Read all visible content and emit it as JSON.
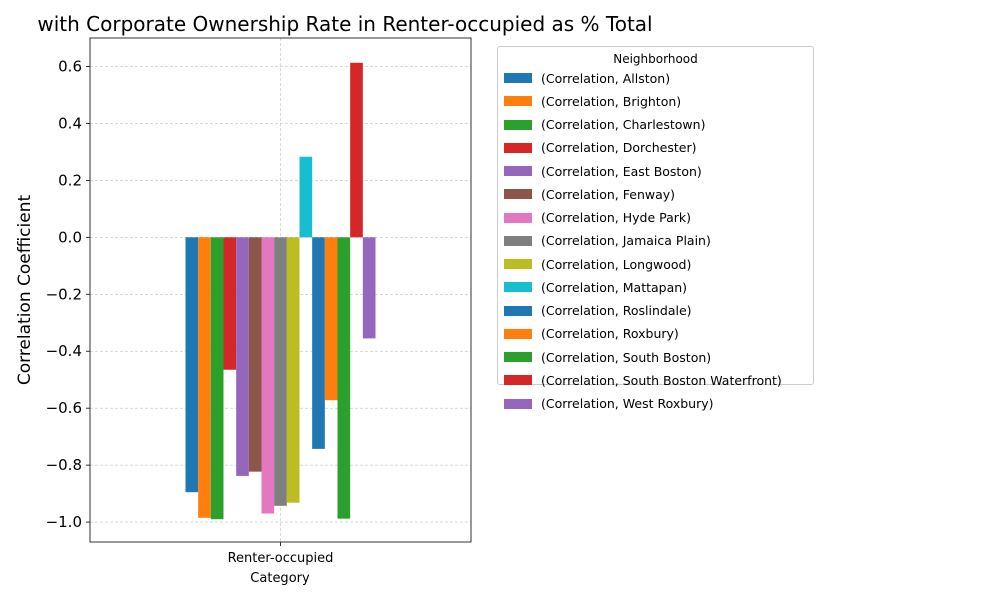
{
  "chart_data": {
    "type": "bar",
    "title": "with Corporate Ownership Rate in Renter-occupied as % Total",
    "xlabel": "Category",
    "ylabel": "Correlation Coefficient",
    "categories": [
      "Renter-occupied"
    ],
    "ylim": [
      -1.07,
      0.7
    ],
    "yticks": [
      -1.0,
      -0.8,
      -0.6,
      -0.4,
      -0.2,
      0.0,
      0.2,
      0.4,
      0.6
    ],
    "ytick_labels": [
      "−1.0",
      "−0.8",
      "−0.6",
      "−0.4",
      "−0.2",
      "0.0",
      "0.2",
      "0.4",
      "0.6"
    ],
    "grid": true,
    "legend_title": "Neighborhood",
    "legend_placement": "outside upper right",
    "series": [
      {
        "name": "(Correlation, Allston)",
        "values": [
          -0.895
        ],
        "color": "#1f77b4"
      },
      {
        "name": "(Correlation, Brighton)",
        "values": [
          -0.985
        ],
        "color": "#ff7f0e"
      },
      {
        "name": "(Correlation, Charlestown)",
        "values": [
          -0.99
        ],
        "color": "#2ca02c"
      },
      {
        "name": "(Correlation, Dorchester)",
        "values": [
          -0.465
        ],
        "color": "#d62728"
      },
      {
        "name": "(Correlation, East Boston)",
        "values": [
          -0.838
        ],
        "color": "#9467bd"
      },
      {
        "name": "(Correlation, Fenway)",
        "values": [
          -0.823
        ],
        "color": "#8c564b"
      },
      {
        "name": "(Correlation, Hyde Park)",
        "values": [
          -0.97
        ],
        "color": "#e377c2"
      },
      {
        "name": "(Correlation, Jamaica Plain)",
        "values": [
          -0.943
        ],
        "color": "#7f7f7f"
      },
      {
        "name": "(Correlation, Longwood)",
        "values": [
          -0.932
        ],
        "color": "#bcbd22"
      },
      {
        "name": "(Correlation, Mattapan)",
        "values": [
          0.283
        ],
        "color": "#17becf"
      },
      {
        "name": "(Correlation, Roslindale)",
        "values": [
          -0.743
        ],
        "color": "#1f77b4"
      },
      {
        "name": "(Correlation, Roxbury)",
        "values": [
          -0.572
        ],
        "color": "#ff7f0e"
      },
      {
        "name": "(Correlation, South Boston)",
        "values": [
          -0.988
        ],
        "color": "#2ca02c"
      },
      {
        "name": "(Correlation, South Boston Waterfront)",
        "values": [
          0.613
        ],
        "color": "#d62728"
      },
      {
        "name": "(Correlation, West Roxbury)",
        "values": [
          -0.355
        ],
        "color": "#9467bd"
      }
    ]
  }
}
